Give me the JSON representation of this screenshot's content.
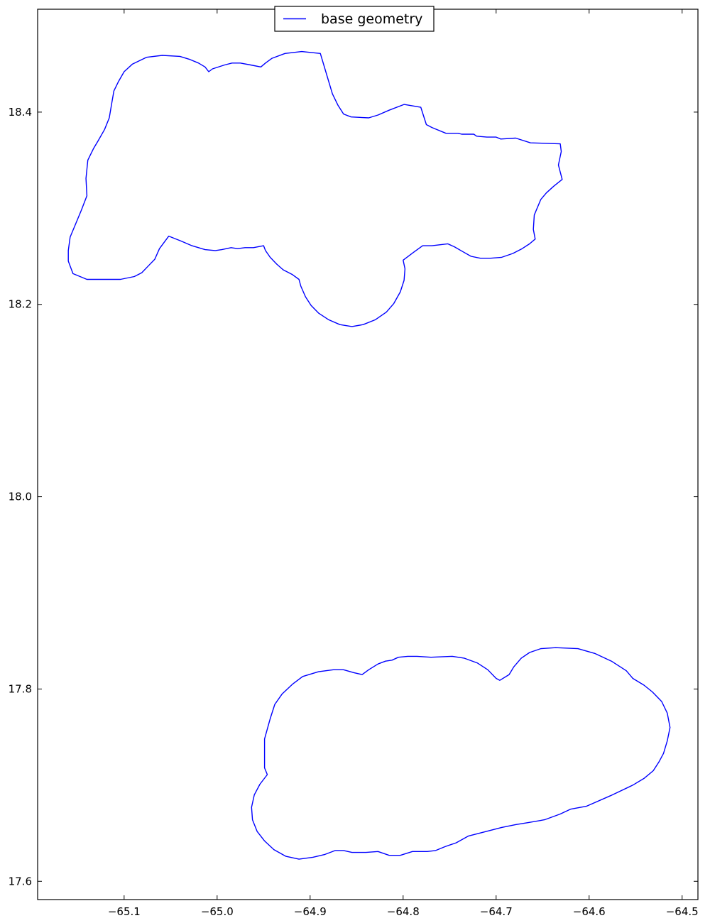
{
  "chart_data": {
    "type": "line",
    "title": "",
    "xlabel": "",
    "ylabel": "",
    "xlim": [
      -65.193,
      -64.483
    ],
    "ylim": [
      17.581,
      18.507
    ],
    "x_ticks": [
      -65.1,
      -65.0,
      -64.9,
      -64.8,
      -64.7,
      -64.6,
      -64.5
    ],
    "y_ticks": [
      17.6,
      17.8,
      18.0,
      18.2,
      18.4
    ],
    "x_tick_labels": [
      "−65.1",
      "−65.0",
      "−64.9",
      "−64.8",
      "−64.7",
      "−64.6",
      "−64.5"
    ],
    "y_tick_labels": [
      "17.6",
      "17.8",
      "18.0",
      "18.2",
      "18.4"
    ],
    "grid": false,
    "legend": {
      "position": "top-center",
      "entries": [
        "base geometry"
      ]
    },
    "series": [
      {
        "name": "base geometry",
        "color": "#0000ff",
        "polygons": [
          [
            [
              -65.059,
              18.459
            ],
            [
              -65.04,
              18.458
            ],
            [
              -65.03,
              18.455
            ],
            [
              -65.02,
              18.451
            ],
            [
              -65.013,
              18.447
            ],
            [
              -65.009,
              18.442
            ],
            [
              -65.005,
              18.445
            ],
            [
              -64.992,
              18.449
            ],
            [
              -64.984,
              18.451
            ],
            [
              -64.975,
              18.451
            ],
            [
              -64.964,
              18.449
            ],
            [
              -64.953,
              18.447
            ],
            [
              -64.948,
              18.451
            ],
            [
              -64.941,
              18.456
            ],
            [
              -64.927,
              18.461
            ],
            [
              -64.909,
              18.463
            ],
            [
              -64.889,
              18.461
            ],
            [
              -64.881,
              18.435
            ],
            [
              -64.876,
              18.419
            ],
            [
              -64.87,
              18.407
            ],
            [
              -64.864,
              18.398
            ],
            [
              -64.856,
              18.395
            ],
            [
              -64.837,
              18.394
            ],
            [
              -64.827,
              18.397
            ],
            [
              -64.815,
              18.402
            ],
            [
              -64.799,
              18.408
            ],
            [
              -64.781,
              18.405
            ],
            [
              -64.775,
              18.387
            ],
            [
              -64.769,
              18.384
            ],
            [
              -64.754,
              18.378
            ],
            [
              -64.741,
              18.378
            ],
            [
              -64.737,
              18.377
            ],
            [
              -64.724,
              18.377
            ],
            [
              -64.721,
              18.375
            ],
            [
              -64.71,
              18.374
            ],
            [
              -64.7,
              18.374
            ],
            [
              -64.695,
              18.372
            ],
            [
              -64.679,
              18.373
            ],
            [
              -64.663,
              18.368
            ],
            [
              -64.631,
              18.367
            ],
            [
              -64.63,
              18.359
            ],
            [
              -64.633,
              18.345
            ],
            [
              -64.629,
              18.33
            ],
            [
              -64.638,
              18.323
            ],
            [
              -64.646,
              18.316
            ],
            [
              -64.652,
              18.309
            ],
            [
              -64.659,
              18.293
            ],
            [
              -64.66,
              18.278
            ],
            [
              -64.658,
              18.268
            ],
            [
              -64.664,
              18.263
            ],
            [
              -64.672,
              18.258
            ],
            [
              -64.682,
              18.253
            ],
            [
              -64.694,
              18.249
            ],
            [
              -64.706,
              18.248
            ],
            [
              -64.717,
              18.248
            ],
            [
              -64.727,
              18.25
            ],
            [
              -64.736,
              18.255
            ],
            [
              -64.745,
              18.26
            ],
            [
              -64.752,
              18.263
            ],
            [
              -64.769,
              18.261
            ],
            [
              -64.779,
              18.261
            ],
            [
              -64.789,
              18.254
            ],
            [
              -64.8,
              18.246
            ],
            [
              -64.798,
              18.237
            ],
            [
              -64.799,
              18.225
            ],
            [
              -64.803,
              18.213
            ],
            [
              -64.81,
              18.201
            ],
            [
              -64.818,
              18.192
            ],
            [
              -64.83,
              18.184
            ],
            [
              -64.843,
              18.179
            ],
            [
              -64.855,
              18.177
            ],
            [
              -64.868,
              18.179
            ],
            [
              -64.88,
              18.184
            ],
            [
              -64.891,
              18.191
            ],
            [
              -64.899,
              18.199
            ],
            [
              -64.905,
              18.208
            ],
            [
              -64.91,
              18.219
            ],
            [
              -64.912,
              18.226
            ],
            [
              -64.919,
              18.231
            ],
            [
              -64.929,
              18.236
            ],
            [
              -64.936,
              18.242
            ],
            [
              -64.943,
              18.249
            ],
            [
              -64.948,
              18.256
            ],
            [
              -64.95,
              18.261
            ],
            [
              -64.961,
              18.259
            ],
            [
              -64.97,
              18.259
            ],
            [
              -64.978,
              18.258
            ],
            [
              -64.985,
              18.259
            ],
            [
              -64.995,
              18.257
            ],
            [
              -65.002,
              18.256
            ],
            [
              -65.013,
              18.257
            ],
            [
              -65.027,
              18.261
            ],
            [
              -65.039,
              18.266
            ],
            [
              -65.052,
              18.271
            ],
            [
              -65.062,
              18.258
            ],
            [
              -65.067,
              18.247
            ],
            [
              -65.073,
              18.241
            ],
            [
              -65.081,
              18.233
            ],
            [
              -65.089,
              18.229
            ],
            [
              -65.104,
              18.226
            ],
            [
              -65.125,
              18.226
            ],
            [
              -65.14,
              18.226
            ],
            [
              -65.155,
              18.232
            ],
            [
              -65.16,
              18.245
            ],
            [
              -65.16,
              18.256
            ],
            [
              -65.158,
              18.27
            ],
            [
              -65.152,
              18.284
            ],
            [
              -65.146,
              18.298
            ],
            [
              -65.14,
              18.313
            ],
            [
              -65.141,
              18.331
            ],
            [
              -65.139,
              18.35
            ],
            [
              -65.133,
              18.362
            ],
            [
              -65.128,
              18.37
            ],
            [
              -65.121,
              18.382
            ],
            [
              -65.116,
              18.394
            ],
            [
              -65.113,
              18.411
            ],
            [
              -65.111,
              18.422
            ],
            [
              -65.106,
              18.432
            ],
            [
              -65.1,
              18.442
            ],
            [
              -65.091,
              18.45
            ],
            [
              -65.076,
              18.457
            ],
            [
              -65.059,
              18.459
            ]
          ],
          [
            [
              -64.949,
              17.748
            ],
            [
              -64.943,
              17.769
            ],
            [
              -64.938,
              17.784
            ],
            [
              -64.93,
              17.795
            ],
            [
              -64.919,
              17.805
            ],
            [
              -64.908,
              17.813
            ],
            [
              -64.891,
              17.818
            ],
            [
              -64.875,
              17.82
            ],
            [
              -64.864,
              17.82
            ],
            [
              -64.853,
              17.817
            ],
            [
              -64.844,
              17.815
            ],
            [
              -64.837,
              17.82
            ],
            [
              -64.827,
              17.826
            ],
            [
              -64.819,
              17.829
            ],
            [
              -64.812,
              17.83
            ],
            [
              -64.805,
              17.833
            ],
            [
              -64.795,
              17.834
            ],
            [
              -64.785,
              17.834
            ],
            [
              -64.77,
              17.833
            ],
            [
              -64.747,
              17.834
            ],
            [
              -64.734,
              17.832
            ],
            [
              -64.72,
              17.827
            ],
            [
              -64.709,
              17.82
            ],
            [
              -64.7,
              17.811
            ],
            [
              -64.696,
              17.809
            ],
            [
              -64.686,
              17.815
            ],
            [
              -64.681,
              17.823
            ],
            [
              -64.673,
              17.832
            ],
            [
              -64.664,
              17.838
            ],
            [
              -64.652,
              17.842
            ],
            [
              -64.636,
              17.843
            ],
            [
              -64.612,
              17.842
            ],
            [
              -64.594,
              17.837
            ],
            [
              -64.576,
              17.829
            ],
            [
              -64.56,
              17.819
            ],
            [
              -64.553,
              17.811
            ],
            [
              -64.541,
              17.804
            ],
            [
              -64.532,
              17.797
            ],
            [
              -64.522,
              17.787
            ],
            [
              -64.516,
              17.775
            ],
            [
              -64.513,
              17.76
            ],
            [
              -64.516,
              17.746
            ],
            [
              -64.52,
              17.733
            ],
            [
              -64.525,
              17.724
            ],
            [
              -64.531,
              17.715
            ],
            [
              -64.541,
              17.707
            ],
            [
              -64.553,
              17.7
            ],
            [
              -64.577,
              17.689
            ],
            [
              -64.603,
              17.678
            ],
            [
              -64.62,
              17.675
            ],
            [
              -64.631,
              17.67
            ],
            [
              -64.648,
              17.664
            ],
            [
              -64.666,
              17.661
            ],
            [
              -64.679,
              17.659
            ],
            [
              -64.694,
              17.656
            ],
            [
              -64.714,
              17.651
            ],
            [
              -64.73,
              17.647
            ],
            [
              -64.743,
              17.64
            ],
            [
              -64.755,
              17.636
            ],
            [
              -64.765,
              17.632
            ],
            [
              -64.774,
              17.631
            ],
            [
              -64.79,
              17.631
            ],
            [
              -64.803,
              17.627
            ],
            [
              -64.815,
              17.627
            ],
            [
              -64.827,
              17.631
            ],
            [
              -64.84,
              17.63
            ],
            [
              -64.855,
              17.63
            ],
            [
              -64.864,
              17.632
            ],
            [
              -64.873,
              17.632
            ],
            [
              -64.884,
              17.628
            ],
            [
              -64.897,
              17.625
            ],
            [
              -64.912,
              17.623
            ],
            [
              -64.926,
              17.626
            ],
            [
              -64.939,
              17.633
            ],
            [
              -64.949,
              17.642
            ],
            [
              -64.957,
              17.652
            ],
            [
              -64.962,
              17.664
            ],
            [
              -64.963,
              17.677
            ],
            [
              -64.96,
              17.69
            ],
            [
              -64.954,
              17.701
            ],
            [
              -64.946,
              17.711
            ],
            [
              -64.949,
              17.718
            ],
            [
              -64.949,
              17.748
            ]
          ]
        ]
      }
    ]
  }
}
